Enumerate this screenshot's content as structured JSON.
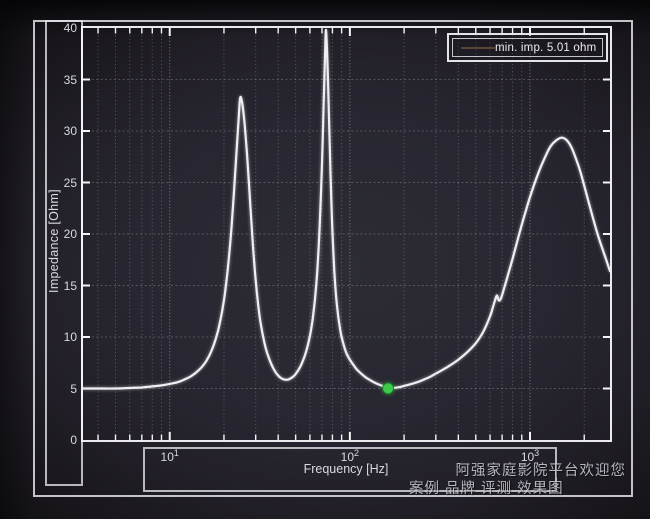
{
  "watermark": {
    "line1": "阿强家庭影院平台欢迎您",
    "line2": "案例 品牌 评测 效果图"
  },
  "colors": {
    "frame": "#e2e2e8",
    "curve": "#efeef2",
    "marker_green": "#3fc94c",
    "legend_line": "#5a4337",
    "text": "#d9d9de",
    "background": "#26252e"
  },
  "chart_data": {
    "type": "line",
    "title": "",
    "xlabel": "Frequency [Hz]",
    "ylabel": "Impedance [Ohm]",
    "x_scale": "log",
    "xlim": [
      3.3,
      2780
    ],
    "ylim": [
      0,
      40
    ],
    "y_tick_step": 5,
    "y_tick_labels": [
      0,
      5,
      10,
      15,
      20,
      25,
      30,
      35,
      40
    ],
    "x_major_ticks": [
      10,
      100,
      1000
    ],
    "grid": true,
    "legend_position": "top-right",
    "legend": {
      "label": "min. imp. 5.01 ohm",
      "line_color": "#5a4337"
    },
    "min_marker": {
      "frequency_hz": 163,
      "impedance_ohm": 5.01,
      "color": "#3fc94c"
    },
    "series": [
      {
        "name": "impedance",
        "color": "#efeef2",
        "points": [
          [
            3.3,
            5.0
          ],
          [
            4,
            5.0
          ],
          [
            5,
            5.0
          ],
          [
            6,
            5.05
          ],
          [
            7,
            5.1
          ],
          [
            8,
            5.2
          ],
          [
            9,
            5.3
          ],
          [
            10,
            5.45
          ],
          [
            11,
            5.6
          ],
          [
            12,
            5.85
          ],
          [
            13,
            6.15
          ],
          [
            14,
            6.55
          ],
          [
            15,
            7.05
          ],
          [
            16,
            7.7
          ],
          [
            17,
            8.6
          ],
          [
            18,
            9.8
          ],
          [
            19,
            11.4
          ],
          [
            20,
            13.6
          ],
          [
            21,
            16.6
          ],
          [
            22,
            20.5
          ],
          [
            23,
            25.5
          ],
          [
            24,
            30.5
          ],
          [
            24.6,
            33.2
          ],
          [
            25.3,
            32.6
          ],
          [
            26,
            30.8
          ],
          [
            27,
            27.2
          ],
          [
            28,
            22.8
          ],
          [
            29,
            18.8
          ],
          [
            30,
            15.5
          ],
          [
            31,
            13.1
          ],
          [
            32,
            11.3
          ],
          [
            34,
            9.0
          ],
          [
            36,
            7.7
          ],
          [
            38,
            6.8
          ],
          [
            40,
            6.25
          ],
          [
            42,
            5.95
          ],
          [
            44,
            5.85
          ],
          [
            46,
            5.9
          ],
          [
            48,
            6.1
          ],
          [
            50,
            6.4
          ],
          [
            53,
            7.1
          ],
          [
            56,
            8.1
          ],
          [
            58,
            9.0
          ],
          [
            60,
            10.1
          ],
          [
            62,
            11.6
          ],
          [
            64,
            13.7
          ],
          [
            66,
            16.6
          ],
          [
            68,
            20.8
          ],
          [
            70,
            26.8
          ],
          [
            71,
            30.5
          ],
          [
            72,
            34.5
          ],
          [
            73,
            38.2
          ],
          [
            73.6,
            39.8
          ],
          [
            74.3,
            38.8
          ],
          [
            75,
            36.8
          ],
          [
            76,
            33.5
          ],
          [
            77,
            29.8
          ],
          [
            78,
            26.2
          ],
          [
            79,
            23.0
          ],
          [
            80,
            20.3
          ],
          [
            82,
            16.4
          ],
          [
            84,
            13.8
          ],
          [
            86,
            12.1
          ],
          [
            88,
            10.9
          ],
          [
            90,
            10.0
          ],
          [
            95,
            8.55
          ],
          [
            100,
            7.8
          ],
          [
            105,
            7.25
          ],
          [
            110,
            6.8
          ],
          [
            120,
            6.2
          ],
          [
            130,
            5.8
          ],
          [
            140,
            5.5
          ],
          [
            150,
            5.28
          ],
          [
            160,
            5.1
          ],
          [
            163,
            5.01
          ],
          [
            170,
            5.03
          ],
          [
            180,
            5.08
          ],
          [
            190,
            5.15
          ],
          [
            200,
            5.25
          ],
          [
            220,
            5.45
          ],
          [
            240,
            5.65
          ],
          [
            260,
            5.9
          ],
          [
            280,
            6.15
          ],
          [
            300,
            6.45
          ],
          [
            330,
            6.85
          ],
          [
            360,
            7.25
          ],
          [
            400,
            7.8
          ],
          [
            450,
            8.55
          ],
          [
            500,
            9.4
          ],
          [
            550,
            10.5
          ],
          [
            600,
            12.0
          ],
          [
            620,
            12.8
          ],
          [
            640,
            13.6
          ],
          [
            655,
            14.05
          ],
          [
            668,
            13.6
          ],
          [
            680,
            13.55
          ],
          [
            695,
            13.9
          ],
          [
            720,
            14.8
          ],
          [
            760,
            16.2
          ],
          [
            800,
            17.6
          ],
          [
            850,
            19.3
          ],
          [
            900,
            20.9
          ],
          [
            950,
            22.3
          ],
          [
            1000,
            23.6
          ],
          [
            1100,
            25.7
          ],
          [
            1200,
            27.3
          ],
          [
            1300,
            28.5
          ],
          [
            1400,
            29.1
          ],
          [
            1500,
            29.35
          ],
          [
            1600,
            29.1
          ],
          [
            1700,
            28.4
          ],
          [
            1800,
            27.3
          ],
          [
            1900,
            26.1
          ],
          [
            2000,
            24.7
          ],
          [
            2200,
            22.0
          ],
          [
            2400,
            19.7
          ],
          [
            2600,
            17.9
          ],
          [
            2780,
            16.4
          ]
        ]
      }
    ]
  }
}
